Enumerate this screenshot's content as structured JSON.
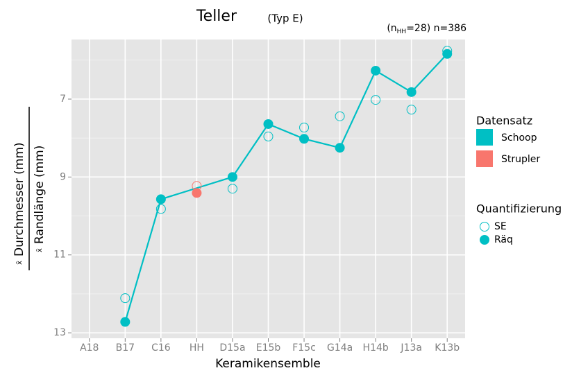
{
  "chart_data": {
    "type": "line",
    "title": "Teller",
    "title_suffix": "(Typ E)",
    "subtitle": {
      "prefix": "(n",
      "subscript": "HH",
      "suffix": "=28) n=386"
    },
    "x_label": "Keramikensemble",
    "y_label": {
      "symbol": "x̄",
      "numerator": "Durchmesser (mm)",
      "denominator": "Randlänge (mm)"
    },
    "categories": [
      "A18",
      "B17",
      "C16",
      "HH",
      "D15a",
      "E15b",
      "F15c",
      "G14a",
      "H14b",
      "J13a",
      "K13b"
    ],
    "ylim": [
      5.47,
      13.14
    ],
    "y_reversed": true,
    "yticks": [
      7,
      9,
      11,
      13
    ],
    "yminorticks": [
      6,
      8,
      10,
      12
    ],
    "grid": true,
    "datasets": [
      {
        "name": "Schoop",
        "color": "#00bfc4",
        "line": true,
        "categories": [
          "B17",
          "C16",
          "D15a",
          "E15b",
          "F15c",
          "G14a",
          "H14b",
          "J13a",
          "K13b"
        ],
        "raeq": [
          12.72,
          9.57,
          9.0,
          7.64,
          8.02,
          8.25,
          6.27,
          6.82,
          5.84
        ],
        "se": [
          12.11,
          9.82,
          9.3,
          7.96,
          7.73,
          7.44,
          7.02,
          7.27,
          5.76
        ]
      },
      {
        "name": "Strupler",
        "color": "#f8766d",
        "line": false,
        "categories": [
          "HH"
        ],
        "raeq": [
          9.41
        ],
        "se": [
          9.23
        ]
      }
    ],
    "color_legend_title": "Datensatz",
    "shape_legend": {
      "title": "Quantifizierung",
      "se": "SE",
      "raeq": "Räq"
    }
  }
}
